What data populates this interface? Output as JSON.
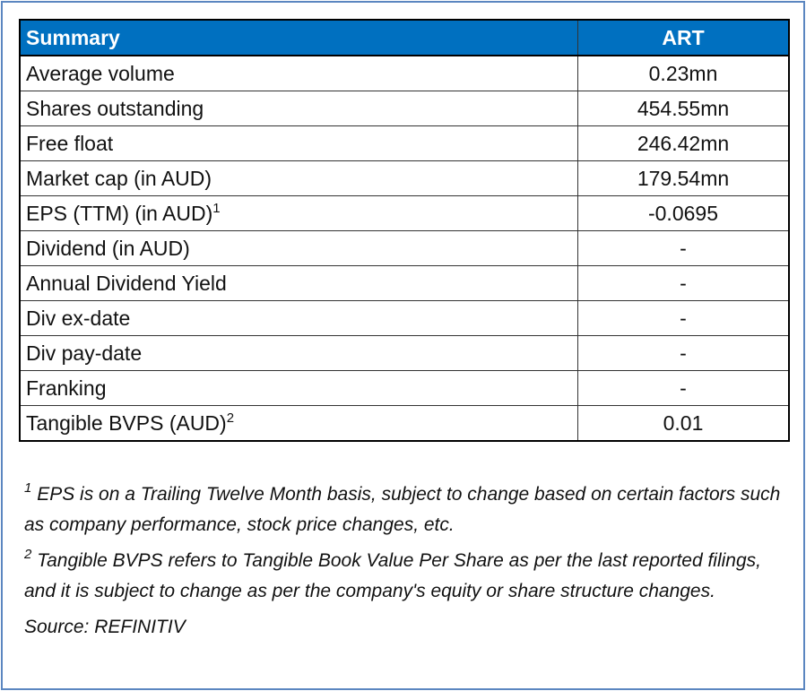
{
  "table": {
    "header": [
      "Summary",
      "ART"
    ],
    "rows": [
      {
        "label": "Average volume",
        "value": "0.23mn"
      },
      {
        "label": "Shares outstanding",
        "value": "454.55mn"
      },
      {
        "label": "Free float",
        "value": "246.42mn"
      },
      {
        "label": "Market cap (in AUD)",
        "value": "179.54mn"
      },
      {
        "label": "EPS (TTM) (in AUD)",
        "note": "1",
        "value": "-0.0695"
      },
      {
        "label": "Dividend (in AUD)",
        "value": "-"
      },
      {
        "label": "Annual Dividend Yield",
        "value": "-"
      },
      {
        "label": "Div ex-date",
        "value": "-"
      },
      {
        "label": "Div pay-date",
        "value": "-"
      },
      {
        "label": "Franking",
        "value": "-"
      },
      {
        "label": "Tangible BVPS (AUD)",
        "note": "2",
        "value": "0.01"
      }
    ]
  },
  "footnotes": [
    {
      "marker": "1",
      "text": "EPS is on a Trailing Twelve Month basis, subject to change based on certain factors such as company performance, stock price changes, etc."
    },
    {
      "marker": "2",
      "text": "Tangible BVPS refers to Tangible Book Value Per Share as per the last reported filings, and it is subject to change as per the company's equity or share structure changes."
    }
  ],
  "source": "Source: REFINITIV"
}
